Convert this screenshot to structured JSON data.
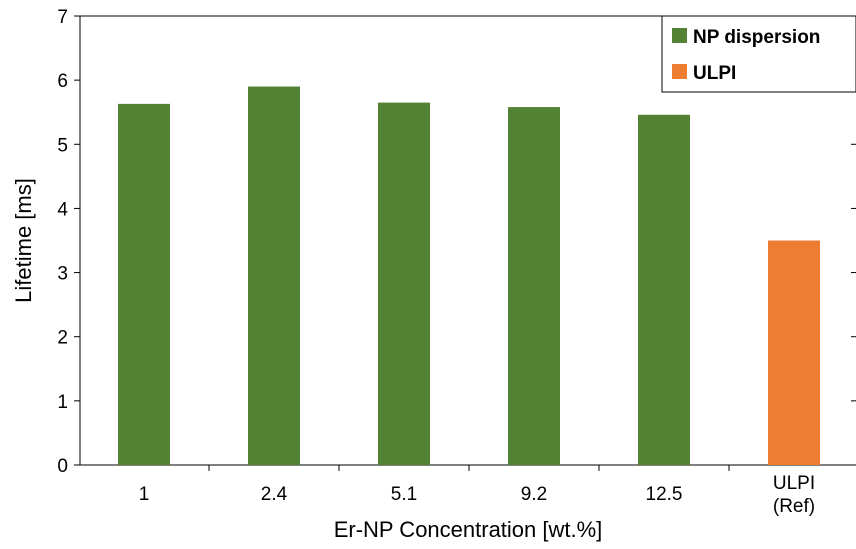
{
  "chart_data": {
    "type": "bar",
    "categories": [
      "1",
      "2.4",
      "5.1",
      "9.2",
      "12.5",
      "ULPI (Ref)"
    ],
    "category_lines": [
      [
        "1"
      ],
      [
        "2.4"
      ],
      [
        "5.1"
      ],
      [
        "9.2"
      ],
      [
        "12.5"
      ],
      [
        "ULPI",
        "(Ref)"
      ]
    ],
    "series": [
      {
        "name": "NP dispersion",
        "color": "#548235",
        "values": [
          5.63,
          5.9,
          5.65,
          5.58,
          5.46,
          null
        ]
      },
      {
        "name": "ULPI",
        "color": "#ED7D31",
        "values": [
          null,
          null,
          null,
          null,
          null,
          3.5
        ]
      }
    ],
    "xlabel": "Er-NP Concentration [wt.%]",
    "ylabel": "Lifetime [ms]",
    "ylim": [
      0,
      7
    ],
    "yticks": [
      0,
      1,
      2,
      3,
      4,
      5,
      6,
      7
    ],
    "grid": false,
    "legend_position": "top-right"
  }
}
